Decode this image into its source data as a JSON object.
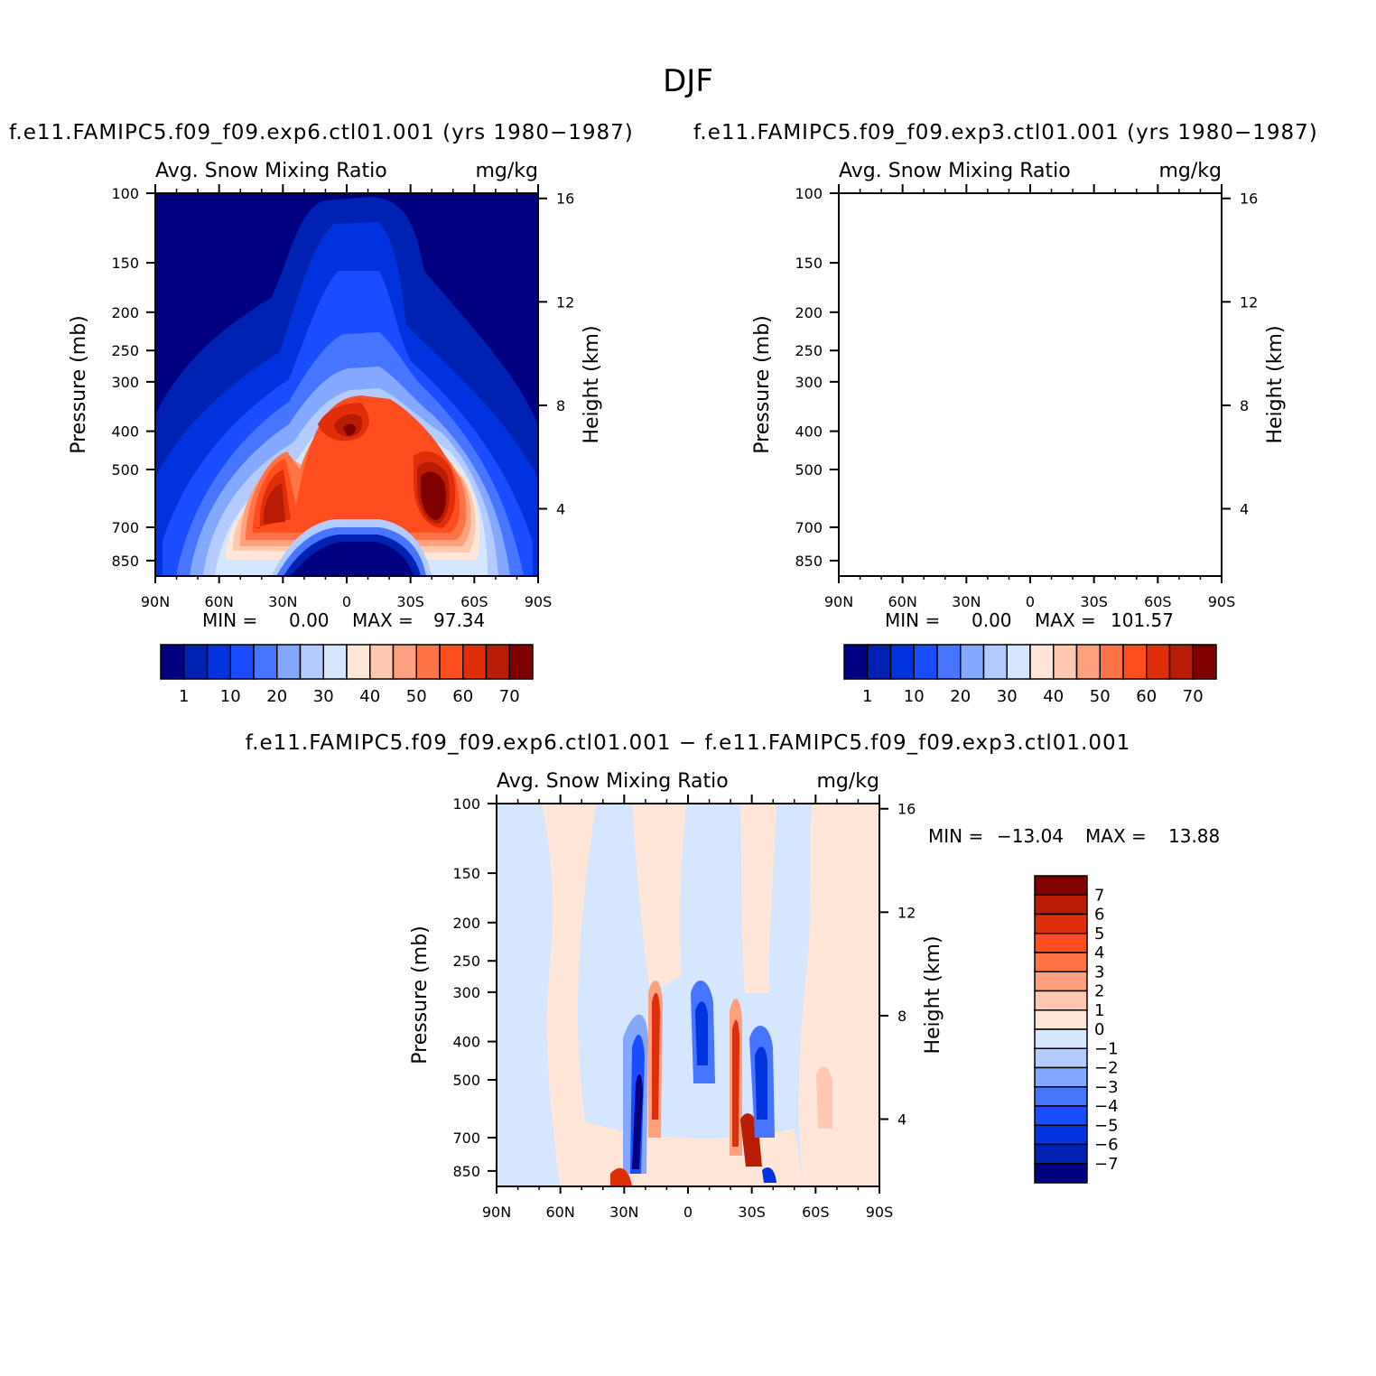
{
  "page_title": "DJF",
  "chart_data": [
    {
      "type": "contour",
      "panel": "top-left",
      "title": "f.e11.FAMIPC5.f09_f09.exp6.ctl01.001 (yrs 1980−1987)",
      "subtitle_left": "Avg. Snow Mixing Ratio",
      "subtitle_right": "mg/kg",
      "ylabel": "Pressure (mb)",
      "ylabel_right": "Height (km)",
      "x_ticks": [
        "90N",
        "60N",
        "30N",
        "0",
        "30S",
        "60S",
        "90S"
      ],
      "y_ticks": [
        "100",
        "150",
        "200",
        "250",
        "300",
        "400",
        "500",
        "700",
        "850"
      ],
      "y_ticks_right": [
        "16",
        "12",
        "8",
        "4"
      ],
      "stats": {
        "min_label": "MIN =",
        "min": "0.00",
        "max_label": "MAX =",
        "max": "97.34"
      },
      "colorbar_labels": [
        "1",
        "10",
        "20",
        "30",
        "40",
        "50",
        "60",
        "70"
      ]
    },
    {
      "type": "contour",
      "panel": "top-right",
      "title": "f.e11.FAMIPC5.f09_f09.exp3.ctl01.001 (yrs 1980−1987)",
      "subtitle_left": "Avg. Snow Mixing Ratio",
      "subtitle_right": "mg/kg",
      "ylabel": "Pressure (mb)",
      "ylabel_right": "Height (km)",
      "x_ticks": [
        "90N",
        "60N",
        "30N",
        "0",
        "30S",
        "60S",
        "90S"
      ],
      "y_ticks": [
        "100",
        "150",
        "200",
        "250",
        "300",
        "400",
        "500",
        "700",
        "850"
      ],
      "y_ticks_right": [
        "16",
        "12",
        "8",
        "4"
      ],
      "stats": {
        "min_label": "MIN =",
        "min": "0.00",
        "max_label": "MAX =",
        "max": "101.57"
      },
      "colorbar_labels": [
        "1",
        "10",
        "20",
        "30",
        "40",
        "50",
        "60",
        "70"
      ]
    },
    {
      "type": "contour",
      "panel": "bottom",
      "title": "f.e11.FAMIPC5.f09_f09.exp6.ctl01.001 − f.e11.FAMIPC5.f09_f09.exp3.ctl01.001",
      "subtitle_left": "Avg. Snow Mixing Ratio",
      "subtitle_right": "mg/kg",
      "ylabel": "Pressure (mb)",
      "ylabel_right": "Height (km)",
      "x_ticks": [
        "90N",
        "60N",
        "30N",
        "0",
        "30S",
        "60S",
        "90S"
      ],
      "y_ticks": [
        "100",
        "150",
        "200",
        "250",
        "300",
        "400",
        "500",
        "700",
        "850"
      ],
      "y_ticks_right": [
        "16",
        "12",
        "8",
        "4"
      ],
      "stats": {
        "min_label": "MIN =",
        "min": "−13.04",
        "max_label": "MAX =",
        "max": "13.88"
      },
      "colorbar_labels": [
        "7",
        "6",
        "5",
        "4",
        "3",
        "2",
        "1",
        "0",
        "−1",
        "−2",
        "−3",
        "−4",
        "−5",
        "−6",
        "−7"
      ]
    }
  ],
  "colors": {
    "abs_scale": [
      "#000080",
      "#0022b3",
      "#0033dd",
      "#1a4dff",
      "#4775ff",
      "#85a8ff",
      "#b3cbff",
      "#d6e6ff",
      "#ffe6d9",
      "#ffc8b0",
      "#ffa07f",
      "#ff7447",
      "#ff4d1f",
      "#e02e0a",
      "#b81c05",
      "#800000"
    ],
    "diff_scale_top_to_bottom": [
      "#800000",
      "#b81c05",
      "#e02e0a",
      "#ff4d1f",
      "#ff7447",
      "#ffa07f",
      "#ffc8b0",
      "#ffe6d9",
      "#d6e6ff",
      "#b3cbff",
      "#85a8ff",
      "#4775ff",
      "#1a4dff",
      "#0033dd",
      "#0022b3",
      "#000080"
    ]
  }
}
